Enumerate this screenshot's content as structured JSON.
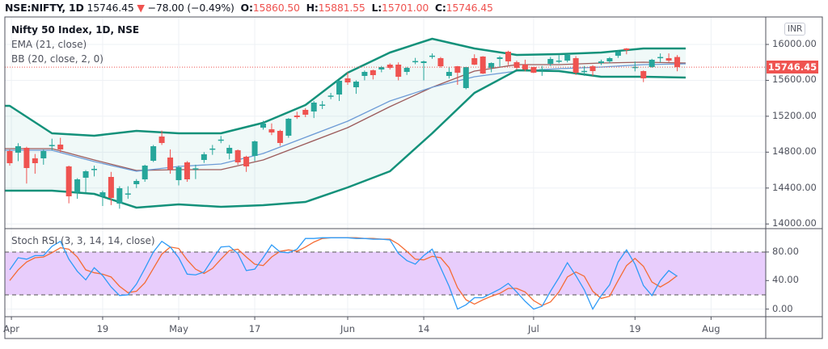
{
  "header": {
    "symbol": "NSE:NIFTY, 1D",
    "last": "15746.45",
    "change": "−78.00 (−0.49%)",
    "o_label": "O:",
    "o": "15860.50",
    "h_label": "H:",
    "h": "15881.55",
    "l_label": "L:",
    "l": "15701.00",
    "c_label": "C:",
    "c": "15746.45",
    "down_icon": "triangle-down-icon"
  },
  "legend": {
    "title": "Nifty 50 Index, 1D, NSE",
    "ema": "EMA (21, close)",
    "bb": "BB (20, close, 2, 0)",
    "stoch": "Stoch RSI (3, 3, 14, 14, close)"
  },
  "currency": "INR",
  "last_price_label": "15746.45",
  "colors": {
    "up": "#26a69a",
    "down": "#ef5350",
    "band": "#13917a",
    "ema": "#6d9bd6",
    "basis": "#9c5b5b",
    "k": "#2f9bf7",
    "d": "#f56b33",
    "rsi_fill": "#e8cdfc"
  },
  "chart_data": [
    {
      "type": "candlestick",
      "title": "Nifty 50 Index, 1D, NSE",
      "ylim": [
        13960,
        16200
      ],
      "y_ticks": [
        "16000.00",
        "15600.00",
        "15200.00",
        "14800.00",
        "14400.00",
        "14000.00"
      ],
      "y_tick_values": [
        16000,
        15600,
        15200,
        14800,
        14400,
        14000
      ],
      "x_ticks": [
        "Apr",
        "19",
        "May",
        "17",
        "Jun",
        "14",
        "Jul",
        "19",
        "Aug"
      ],
      "x_tick_bar_index": [
        0.2,
        11,
        20,
        29,
        40,
        49,
        62,
        74,
        83
      ],
      "last_price": 15746.45,
      "ohlc": [
        [
          14812,
          14830,
          14650,
          14677
        ],
        [
          14794,
          14900,
          14700,
          14866
        ],
        [
          14848,
          14860,
          14450,
          14623
        ],
        [
          14731,
          14780,
          14560,
          14677
        ],
        [
          14731,
          14830,
          14660,
          14812
        ],
        [
          14870,
          14950,
          14820,
          14880
        ],
        [
          14884,
          14960,
          14800,
          14830
        ],
        [
          14641,
          14650,
          14230,
          14308
        ],
        [
          14353,
          14510,
          14280,
          14497
        ],
        [
          14515,
          14600,
          14350,
          14587
        ],
        [
          14600,
          14650,
          14530,
          14614
        ],
        [
          14308,
          14370,
          14200,
          14353
        ],
        [
          14524,
          14580,
          14210,
          14290
        ],
        [
          14227,
          14420,
          14170,
          14398
        ],
        [
          14330,
          14420,
          14280,
          14340
        ],
        [
          14443,
          14500,
          14400,
          14479
        ],
        [
          14497,
          14660,
          14470,
          14650
        ],
        [
          14704,
          14880,
          14690,
          14866
        ],
        [
          14974,
          15040,
          14880,
          14902
        ],
        [
          14740,
          14830,
          14560,
          14605
        ],
        [
          14488,
          14650,
          14430,
          14632
        ],
        [
          14686,
          14700,
          14470,
          14497
        ],
        [
          14610,
          14660,
          14500,
          14620
        ],
        [
          14713,
          14800,
          14680,
          14776
        ],
        [
          14830,
          14880,
          14770,
          14840
        ],
        [
          14930,
          14980,
          14900,
          14940
        ],
        [
          14785,
          14880,
          14720,
          14848
        ],
        [
          14821,
          14830,
          14660,
          14686
        ],
        [
          14749,
          14760,
          14580,
          14641
        ],
        [
          14758,
          14930,
          14700,
          14920
        ],
        [
          15073,
          15150,
          15050,
          15118
        ],
        [
          15055,
          15120,
          14990,
          15019
        ],
        [
          15037,
          15050,
          14870,
          14902
        ],
        [
          14983,
          15180,
          14960,
          15172
        ],
        [
          15208,
          15250,
          15170,
          15190
        ],
        [
          15271,
          15290,
          15190,
          15217
        ],
        [
          15253,
          15370,
          15180,
          15352
        ],
        [
          15320,
          15370,
          15280,
          15330
        ],
        [
          15420,
          15460,
          15390,
          15430
        ],
        [
          15442,
          15600,
          15370,
          15595
        ],
        [
          15622,
          15690,
          15550,
          15577
        ],
        [
          15523,
          15600,
          15450,
          15586
        ],
        [
          15649,
          15710,
          15600,
          15694
        ],
        [
          15712,
          15720,
          15610,
          15658
        ],
        [
          15721,
          15760,
          15690,
          15748
        ],
        [
          15775,
          15790,
          15720,
          15739
        ],
        [
          15775,
          15800,
          15600,
          15640
        ],
        [
          15694,
          15750,
          15660,
          15739
        ],
        [
          15810,
          15850,
          15780,
          15815
        ],
        [
          15793,
          15820,
          15600,
          15811
        ],
        [
          15870,
          15900,
          15840,
          15875
        ],
        [
          15847,
          15860,
          15740,
          15757
        ],
        [
          15649,
          15750,
          15620,
          15694
        ],
        [
          15757,
          15760,
          15550,
          15685
        ],
        [
          15514,
          15750,
          15500,
          15748
        ],
        [
          15847,
          15890,
          15770,
          15775
        ],
        [
          15865,
          15870,
          15670,
          15676
        ],
        [
          15739,
          15800,
          15690,
          15793
        ],
        [
          15838,
          15870,
          15750,
          15856
        ],
        [
          15919,
          15930,
          15770,
          15811
        ],
        [
          15802,
          15820,
          15720,
          15739
        ],
        [
          15775,
          15830,
          15700,
          15721
        ],
        [
          15748,
          15750,
          15680,
          15685
        ],
        [
          15715,
          15760,
          15650,
          15725
        ],
        [
          15784,
          15860,
          15760,
          15838
        ],
        [
          15815,
          15880,
          15790,
          15820
        ],
        [
          15820,
          15890,
          15800,
          15883
        ],
        [
          15847,
          15870,
          15660,
          15685
        ],
        [
          15700,
          15760,
          15650,
          15705
        ],
        [
          15757,
          15770,
          15650,
          15703
        ],
        [
          15793,
          15830,
          15770,
          15811
        ],
        [
          15811,
          15860,
          15790,
          15847
        ],
        [
          15874,
          15930,
          15850,
          15919
        ],
        [
          15955,
          15960,
          15890,
          15937
        ],
        [
          15745,
          15810,
          15700,
          15750
        ],
        [
          15703,
          15710,
          15580,
          15622
        ],
        [
          15748,
          15840,
          15740,
          15829
        ],
        [
          15855,
          15900,
          15800,
          15860
        ],
        [
          15847,
          15900,
          15800,
          15820
        ],
        [
          15860,
          15881.55,
          15701,
          15746.45
        ]
      ],
      "sample_step_bars": 5,
      "bb_upper": [
        15316,
        15010,
        14983,
        15037,
        15010,
        15010,
        15127,
        15325,
        15685,
        15910,
        16063,
        15955,
        15883,
        15892,
        15910,
        15955,
        15955
      ],
      "bb_lower": [
        14371,
        14371,
        14335,
        14182,
        14218,
        14191,
        14209,
        14245,
        14407,
        14587,
        15010,
        15460,
        15712,
        15703,
        15640,
        15640,
        15631
      ],
      "bb_basis": [
        14839,
        14839,
        14713,
        14596,
        14605,
        14605,
        14713,
        14893,
        15073,
        15307,
        15523,
        15703,
        15775,
        15775,
        15793,
        15802,
        15793
      ],
      "ema21": [
        14821,
        14821,
        14695,
        14587,
        14641,
        14668,
        14785,
        14965,
        15145,
        15370,
        15523,
        15640,
        15703,
        15730,
        15748,
        15775,
        15784
      ]
    },
    {
      "type": "line",
      "title": "Stoch RSI (3, 3, 14, 14, close)",
      "ylim": [
        -5,
        115
      ],
      "y_ticks": [
        "80.00",
        "40.00",
        "0.00"
      ],
      "y_tick_values": [
        80,
        40,
        0
      ],
      "band": [
        20,
        80
      ],
      "series": [
        {
          "name": "K",
          "values": [
            55,
            72,
            70,
            75,
            75,
            88,
            95,
            70,
            53,
            41,
            58,
            47,
            31,
            19,
            20,
            35,
            57,
            80,
            95,
            87,
            72,
            49,
            48,
            52,
            70,
            87,
            88,
            78,
            54,
            56,
            72,
            90,
            80,
            79,
            84,
            99,
            99,
            100,
            100,
            100,
            100,
            99,
            99,
            98,
            98,
            97,
            78,
            68,
            63,
            75,
            84,
            58,
            32,
            0,
            6,
            16,
            16,
            22,
            28,
            36,
            24,
            11,
            0,
            4,
            25,
            44,
            65,
            47,
            27,
            0,
            19,
            34,
            66,
            83,
            63,
            33,
            19,
            40,
            54,
            46
          ]
        },
        {
          "name": "D",
          "values": [
            40,
            55,
            66,
            72,
            73,
            79,
            86,
            84,
            73,
            55,
            51,
            49,
            45,
            32,
            23,
            25,
            37,
            57,
            77,
            87,
            85,
            69,
            56,
            50,
            57,
            70,
            82,
            84,
            73,
            63,
            61,
            73,
            81,
            83,
            81,
            87,
            94,
            99,
            100,
            100,
            100,
            100,
            99,
            99,
            98,
            98,
            91,
            81,
            70,
            69,
            74,
            72,
            58,
            30,
            13,
            7,
            13,
            18,
            22,
            29,
            29,
            24,
            12,
            5,
            10,
            24,
            45,
            52,
            46,
            25,
            15,
            18,
            40,
            61,
            71,
            60,
            38,
            31,
            38,
            47
          ]
        }
      ]
    }
  ]
}
